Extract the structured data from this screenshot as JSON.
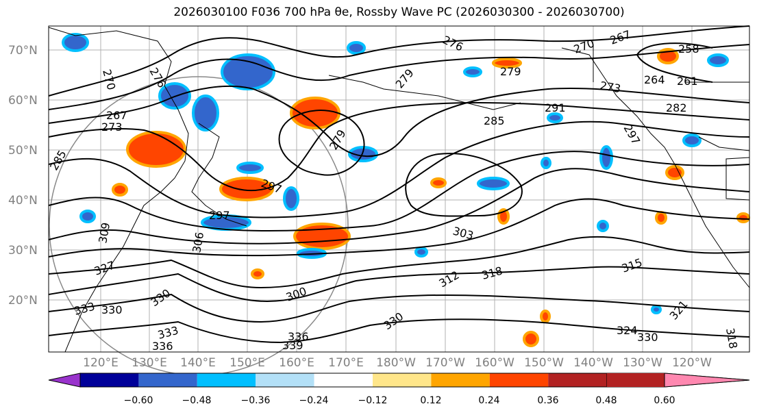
{
  "title": "2026030100 F036 700 hPa θe, Rossby Wave PC (2026030300 - 2026030700)",
  "lat_labels": [
    "70°N",
    "60°N",
    "50°N",
    "40°N",
    "30°N",
    "20°N"
  ],
  "lon_labels": [
    "120°E",
    "130°E",
    "140°E",
    "150°E",
    "160°E",
    "170°E",
    "180°W",
    "170°W",
    "160°W",
    "150°W",
    "140°W",
    "130°W",
    "120°W"
  ],
  "colorbar": {
    "colors": [
      "#9933cc",
      "#000099",
      "#3366cc",
      "#00bfff",
      "#b3e0f7",
      "#ffffff",
      "#ffe68a",
      "#ffa500",
      "#ff4500",
      "#b22222",
      "#ff88b0"
    ],
    "ticks": [
      "−0.60",
      "−0.48",
      "−0.36",
      "−0.24",
      "−0.12",
      "0.12",
      "0.24",
      "0.36",
      "0.48",
      "0.60"
    ]
  },
  "contour_labels": [
    "270",
    "276",
    "267",
    "273",
    "285",
    "279",
    "276",
    "279",
    "270",
    "267",
    "258",
    "264",
    "261",
    "273",
    "282",
    "291",
    "297",
    "279",
    "297",
    "285",
    "303",
    "309",
    "306",
    "318",
    "315",
    "312",
    "327",
    "333",
    "330",
    "330",
    "333",
    "336",
    "339",
    "336",
    "330",
    "321",
    "330",
    "318",
    "324",
    "297",
    "300"
  ],
  "legend_colors": {
    "positive": "#ff4500",
    "negative": "#3366cc"
  }
}
